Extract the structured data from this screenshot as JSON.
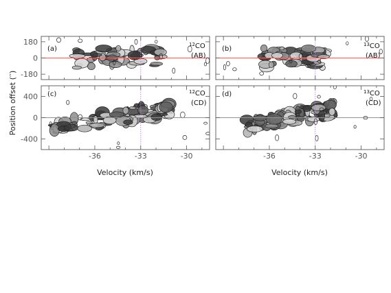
{
  "figure": {
    "ylabel": "Position offset (′′)",
    "xlabel": "Velocity (km/s)"
  },
  "chart_data": [
    {
      "type": "heatmap",
      "panel": "(a)",
      "molecule_sup": "12",
      "molecule_base": "CO",
      "pair": "(AB)",
      "xlim": [
        -39.5,
        -28.5
      ],
      "ylim": [
        -240,
        240
      ],
      "xticks": [
        "-36",
        "-33",
        "-30"
      ],
      "yticks": [
        "180",
        "0",
        "-180"
      ],
      "yticks_values": [
        180,
        0,
        -180
      ],
      "reference_velocity": -33,
      "reference_offset": 0,
      "emission_velocity_range": [
        -37.2,
        -31.5
      ]
    },
    {
      "type": "heatmap",
      "panel": "(b)",
      "molecule_sup": "13",
      "molecule_base": "CO",
      "pair": "(AB)",
      "xlim": [
        -39.5,
        -28.5
      ],
      "ylim": [
        -240,
        240
      ],
      "xticks": [
        "-36",
        "-33",
        "-30"
      ],
      "yticks": [],
      "yticks_values": [
        180,
        0,
        -180
      ],
      "reference_velocity": -33,
      "reference_offset": 0,
      "emission_velocity_range": [
        -36.4,
        -32.2
      ]
    },
    {
      "type": "heatmap",
      "panel": "(c)",
      "molecule_sup": "12",
      "molecule_base": "CO",
      "pair": "(CD)",
      "xlim": [
        -39.5,
        -28.5
      ],
      "ylim": [
        -600,
        600
      ],
      "xticks": [
        "-36",
        "-33",
        "-30"
      ],
      "yticks": [
        "400",
        "0",
        "-400"
      ],
      "yticks_values": [
        400,
        0,
        -400
      ],
      "reference_velocity": -33,
      "reference_offset": 0,
      "emission_velocity_range": [
        -38.8,
        -30.9
      ]
    },
    {
      "type": "heatmap",
      "panel": "(d)",
      "molecule_sup": "13",
      "molecule_base": "CO",
      "pair": "(CD)",
      "xlim": [
        -39.5,
        -28.5
      ],
      "ylim": [
        -600,
        600
      ],
      "xticks": [
        "-36",
        "-33",
        "-30"
      ],
      "yticks": [],
      "yticks_values": [
        400,
        0,
        -400
      ],
      "reference_velocity": -33,
      "reference_offset": 0,
      "emission_velocity_range": [
        -37.5,
        -31.8
      ]
    }
  ],
  "colors": {
    "axis": "#555555",
    "reference_line": "#e86a6a",
    "reference_dotted": "#b98bd0",
    "contour": "#222222",
    "fill_levels": [
      "#d6d6d6",
      "#b3b3b3",
      "#8c8c8c",
      "#5f5f5f",
      "#3a3a3a"
    ]
  }
}
